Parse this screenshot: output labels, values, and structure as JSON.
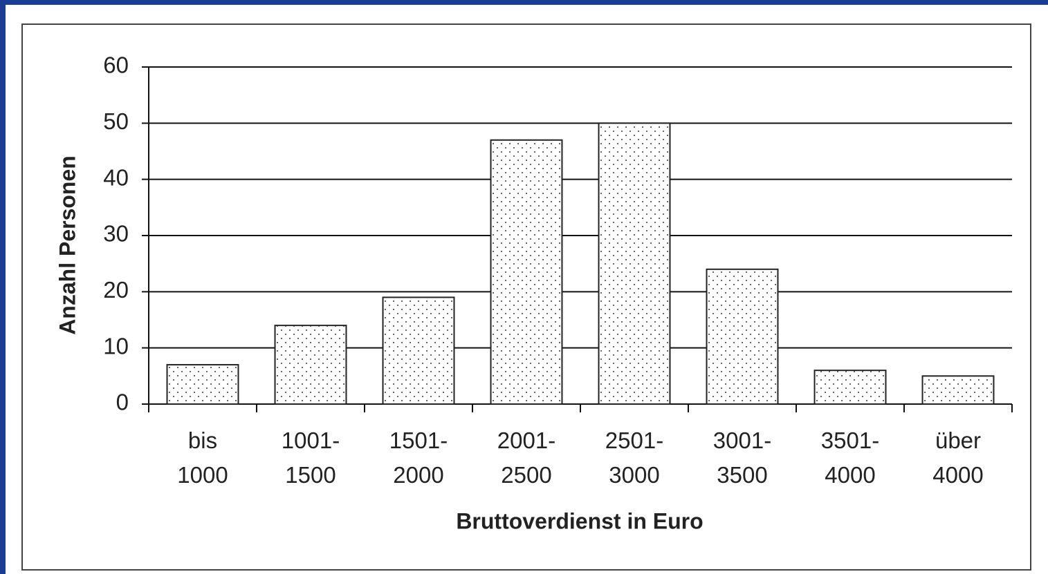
{
  "chart_data": {
    "type": "bar",
    "xlabel": "Bruttoverdienst in Euro",
    "ylabel": "Anzahl Personen",
    "categories": [
      "bis\n1000",
      "1001-\n1500",
      "1501-\n2000",
      "2001-\n2500",
      "2501-\n3000",
      "3001-\n3500",
      "3501-\n4000",
      "über\n4000"
    ],
    "values": [
      7,
      14,
      19,
      47,
      50,
      24,
      6,
      5
    ],
    "color": "dotted",
    "ylim": [
      0,
      60
    ],
    "yticks": [
      0,
      10,
      20,
      30,
      40,
      50,
      60
    ],
    "grid": true
  }
}
